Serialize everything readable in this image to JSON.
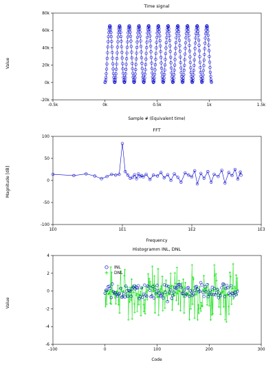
{
  "colors": {
    "inl": "#0000cc",
    "dnl": "#00e000",
    "fft": "#0000cc",
    "time": "#0000cc"
  },
  "chart_data": [
    {
      "type": "scatter",
      "title": "Time signal",
      "xlabel": "Sample # (Equivalent time)",
      "ylabel": "Value",
      "xlim": [
        -500,
        1500
      ],
      "ylim": [
        -20000,
        80000
      ],
      "x_ticks": [
        -500,
        0,
        500,
        1000,
        1500
      ],
      "x_tick_labels": [
        "-0.5k",
        "0k",
        "0.5k",
        "1k",
        "1.5k"
      ],
      "y_ticks": [
        -20000,
        0,
        20000,
        40000,
        60000,
        80000
      ],
      "y_tick_labels": [
        "-20k",
        "0k",
        "20k",
        "40k",
        "60k",
        "80k"
      ],
      "series": [
        {
          "description": "sampled sine wave, samples 0-1023, ~11 cycles, amplitude 0 to ~65535",
          "n_samples": 1024,
          "cycles": 11,
          "min": 0,
          "max": 65535
        }
      ],
      "grid": false
    },
    {
      "type": "line",
      "title": "FFT",
      "xlabel": "Frequency",
      "ylabel": "Magnitude [dB]",
      "xscale": "log",
      "xlim": [
        1,
        1000
      ],
      "ylim": [
        -100,
        100
      ],
      "x_ticks": [
        1,
        10,
        100,
        1000
      ],
      "x_tick_labels": [
        "1E0",
        "1E1",
        "1E2",
        "1E3"
      ],
      "y_ticks": [
        -100,
        -50,
        0,
        50,
        100
      ],
      "y_tick_labels": [
        "-100",
        "-50",
        "0",
        "50",
        "100"
      ],
      "series": [
        {
          "x": [
            1,
            2,
            3,
            4,
            5,
            6,
            7,
            8,
            9,
            10,
            11,
            12,
            13,
            14,
            15,
            16,
            17,
            18,
            19,
            20,
            22,
            25,
            28,
            32,
            36,
            40,
            45,
            50,
            56,
            63,
            70,
            80,
            90,
            100,
            110,
            120,
            135,
            150,
            170,
            190,
            210,
            240,
            270,
            300,
            340,
            380,
            420,
            460,
            500,
            512
          ],
          "y": [
            14,
            11,
            15,
            10,
            4,
            9,
            14,
            12,
            14,
            84,
            20,
            12,
            5,
            7,
            13,
            4,
            15,
            9,
            11,
            8,
            14,
            2,
            12,
            10,
            18,
            6,
            13,
            0,
            15,
            7,
            -4,
            17,
            12,
            8,
            22,
            -8,
            16,
            5,
            20,
            -4,
            14,
            9,
            23,
            -6,
            18,
            11,
            25,
            3,
            19,
            12
          ]
        }
      ],
      "grid": false
    },
    {
      "type": "scatter",
      "title": "Histogramm INL, DNL",
      "xlabel": "Code",
      "ylabel": "Value",
      "xlim": [
        -100,
        300
      ],
      "ylim": [
        -6,
        4
      ],
      "x_ticks": [
        -100,
        0,
        100,
        200,
        300
      ],
      "x_tick_labels": [
        "-100",
        "0",
        "100",
        "200",
        "300"
      ],
      "y_ticks": [
        -6,
        -4,
        -2,
        0,
        2,
        4
      ],
      "y_tick_labels": [
        "-6",
        "-4",
        "-2",
        "0",
        "2",
        "4"
      ],
      "legend": {
        "placement": "top-left",
        "entries": [
          "INL",
          "DNL"
        ]
      },
      "series": [
        {
          "name": "INL",
          "x_range": [
            0,
            255
          ],
          "y_range": [
            -1.2,
            2.0
          ],
          "marker": "circle"
        },
        {
          "name": "DNL",
          "x_range": [
            0,
            255
          ],
          "y_range": [
            -3.6,
            3.8
          ],
          "marker": "plus"
        }
      ],
      "grid": false
    }
  ]
}
